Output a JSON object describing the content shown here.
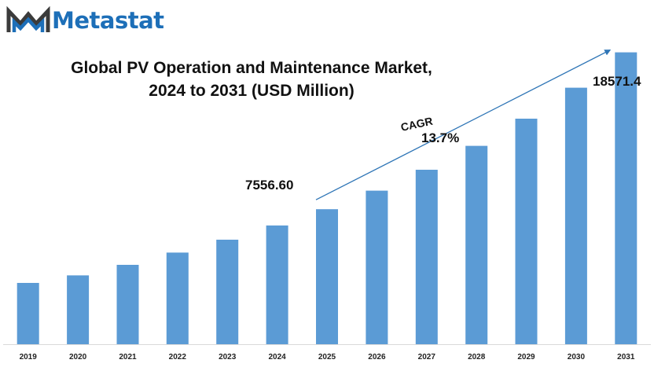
{
  "logo": {
    "text": "Metastat",
    "icon": "mm-logo-icon",
    "color": "#1d6fb8"
  },
  "chart_data": {
    "type": "bar",
    "title": "Global PV Operation and Maintenance Market,",
    "subtitle": "2024 to 2031 (USD Million)",
    "categories": [
      "2019",
      "2020",
      "2021",
      "2022",
      "2023",
      "2024",
      "2025",
      "2026",
      "2027",
      "2028",
      "2029",
      "2030",
      "2031"
    ],
    "values": [
      3900,
      4380,
      5050,
      5830,
      6650,
      7556.6,
      8590,
      9770,
      11100,
      12620,
      14350,
      16320,
      18571.4
    ],
    "ylim": [
      0,
      20000
    ],
    "bar_color": "#5b9bd5",
    "grid": false,
    "annotations": {
      "start_value": "7556.60",
      "end_value": "18571.4",
      "cagr_label": "CAGR",
      "cagr_value": "13.7%"
    }
  }
}
